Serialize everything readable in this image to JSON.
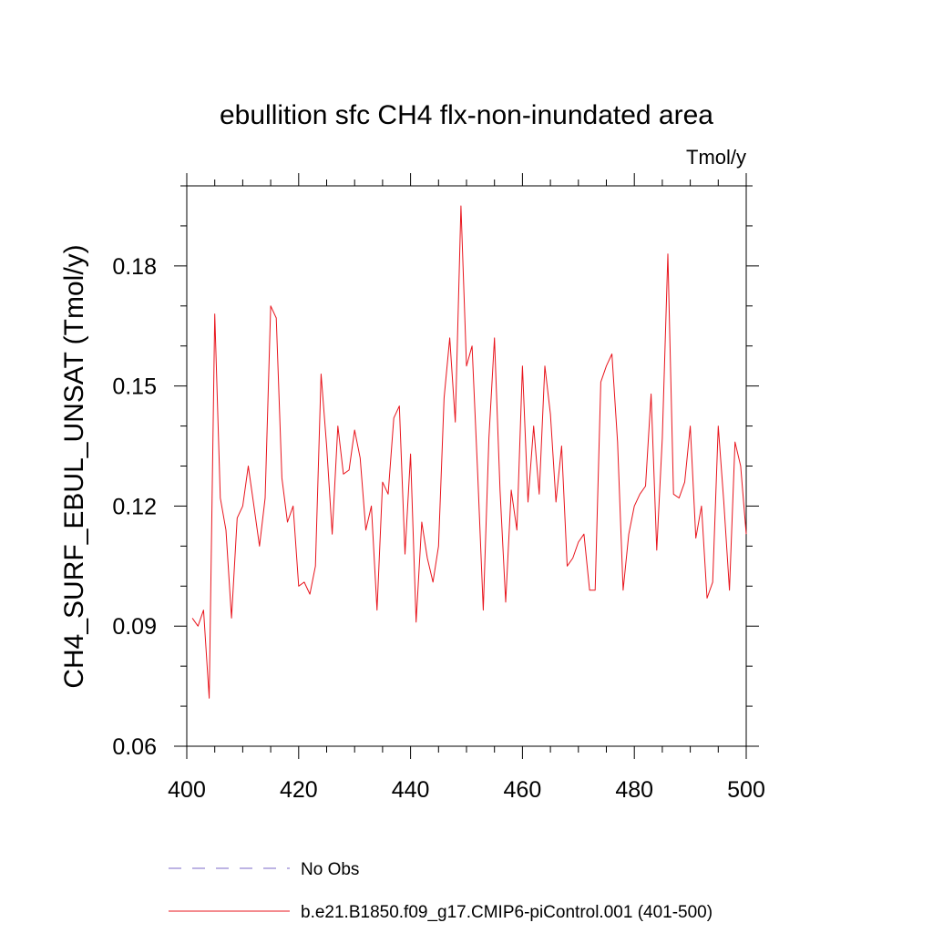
{
  "chart_data": {
    "type": "line",
    "title": "ebullition sfc CH4 flx-non-inundated area",
    "units_label": "Tmol/y",
    "xlabel": "",
    "ylabel": "CH4_SURF_EBUL_UNSAT  (Tmol/y)",
    "xlim": [
      400,
      500
    ],
    "ylim": [
      0.06,
      0.2
    ],
    "xticks": [
      400,
      420,
      440,
      460,
      480,
      500
    ],
    "xtick_labels": [
      "400",
      "420",
      "440",
      "460",
      "480",
      "500"
    ],
    "yticks": [
      0.06,
      0.09,
      0.12,
      0.15,
      0.18
    ],
    "ytick_labels": [
      "0.06",
      "0.09",
      "0.12",
      "0.15",
      "0.18"
    ],
    "legend": [
      {
        "label": "No Obs",
        "color": "#7b68c8",
        "style": "dashed"
      },
      {
        "label": "b.e21.B1850.f09_g17.CMIP6-piControl.001 (401-500)",
        "color": "#e8141c",
        "style": "solid"
      }
    ],
    "series": [
      {
        "name": "b.e21.B1850.f09_g17.CMIP6-piControl.001 (401-500)",
        "color": "#e8141c",
        "x": [
          401,
          402,
          403,
          404,
          405,
          406,
          407,
          408,
          409,
          410,
          411,
          412,
          413,
          414,
          415,
          416,
          417,
          418,
          419,
          420,
          421,
          422,
          423,
          424,
          425,
          426,
          427,
          428,
          429,
          430,
          431,
          432,
          433,
          434,
          435,
          436,
          437,
          438,
          439,
          440,
          441,
          442,
          443,
          444,
          445,
          446,
          447,
          448,
          449,
          450,
          451,
          452,
          453,
          454,
          455,
          456,
          457,
          458,
          459,
          460,
          461,
          462,
          463,
          464,
          465,
          466,
          467,
          468,
          469,
          470,
          471,
          472,
          473,
          474,
          475,
          476,
          477,
          478,
          479,
          480,
          481,
          482,
          483,
          484,
          485,
          486,
          487,
          488,
          489,
          490,
          491,
          492,
          493,
          494,
          495,
          496,
          497,
          498,
          499,
          500
        ],
        "values": [
          0.092,
          0.09,
          0.094,
          0.072,
          0.168,
          0.122,
          0.114,
          0.092,
          0.117,
          0.12,
          0.13,
          0.12,
          0.11,
          0.122,
          0.17,
          0.167,
          0.127,
          0.116,
          0.12,
          0.1,
          0.101,
          0.098,
          0.105,
          0.153,
          0.135,
          0.113,
          0.14,
          0.128,
          0.129,
          0.139,
          0.132,
          0.114,
          0.12,
          0.094,
          0.126,
          0.123,
          0.142,
          0.145,
          0.108,
          0.133,
          0.091,
          0.116,
          0.107,
          0.101,
          0.11,
          0.147,
          0.162,
          0.141,
          0.195,
          0.155,
          0.16,
          0.128,
          0.094,
          0.137,
          0.162,
          0.124,
          0.096,
          0.124,
          0.114,
          0.155,
          0.121,
          0.14,
          0.123,
          0.155,
          0.143,
          0.121,
          0.135,
          0.105,
          0.107,
          0.111,
          0.113,
          0.099,
          0.099,
          0.151,
          0.155,
          0.158,
          0.136,
          0.099,
          0.113,
          0.12,
          0.123,
          0.125,
          0.148,
          0.109,
          0.137,
          0.183,
          0.123,
          0.122,
          0.126,
          0.14,
          0.112,
          0.12,
          0.097,
          0.101,
          0.14,
          0.121,
          0.099,
          0.136,
          0.13,
          0.113
        ]
      }
    ]
  }
}
